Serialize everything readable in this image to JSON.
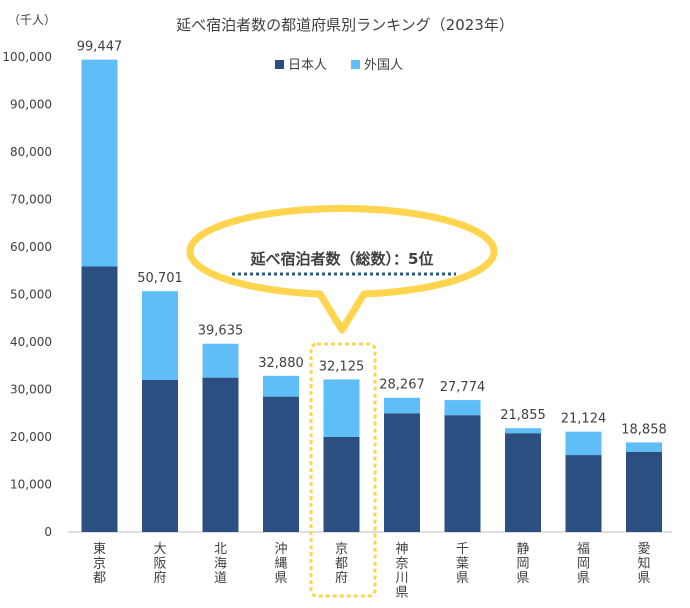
{
  "chart_data": {
    "type": "bar",
    "stacked": true,
    "title": "延べ宿泊者数の都道府県別ランキング（2023年）",
    "unit_label": "（千人）",
    "categories": [
      "東京都",
      "大阪府",
      "北海道",
      "沖縄県",
      "京都府",
      "神奈川県",
      "千葉県",
      "静岡県",
      "福岡県",
      "愛知県"
    ],
    "series": [
      {
        "name": "日本人",
        "values": [
          55900,
          32000,
          32500,
          28500,
          20000,
          25000,
          24600,
          20800,
          16200,
          16900
        ]
      },
      {
        "name": "外国人",
        "values": [
          43547,
          18701,
          7135,
          4380,
          12125,
          3267,
          3174,
          1055,
          4924,
          1958
        ]
      }
    ],
    "totals": [
      99447,
      50701,
      39635,
      32880,
      32125,
      28267,
      27774,
      21855,
      21124,
      18858
    ],
    "total_labels": [
      "99,447",
      "50,701",
      "39,635",
      "32,880",
      "32,125",
      "28,267",
      "27,774",
      "21,855",
      "21,124",
      "18,858"
    ],
    "ylim": [
      0,
      100000
    ],
    "yticks": [
      0,
      10000,
      20000,
      30000,
      40000,
      50000,
      60000,
      70000,
      80000,
      90000,
      100000
    ],
    "ytick_labels": [
      "0",
      "10,000",
      "20,000",
      "30,000",
      "40,000",
      "50,000",
      "60,000",
      "70,000",
      "80,000",
      "90,000",
      "100,000"
    ],
    "colors": {
      "日本人": "#2a4f80",
      "外国人": "#5fbdf7",
      "highlight": "#ffd54f",
      "callout_underline": "#2a5a8a"
    },
    "legend_position": "top",
    "grid": false,
    "annotation": {
      "text": "延べ宿泊者数（総数）：5位",
      "highlight_category": "京都府"
    }
  }
}
